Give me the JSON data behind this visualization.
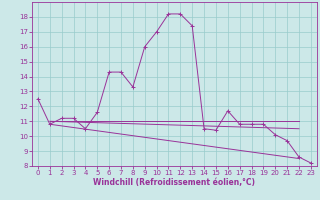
{
  "xlabel": "Windchill (Refroidissement éolien,°C)",
  "bg_color": "#cce8e8",
  "line_color": "#993399",
  "grid_color": "#99cccc",
  "xlim": [
    -0.5,
    23.5
  ],
  "ylim": [
    8,
    19
  ],
  "xticks": [
    0,
    1,
    2,
    3,
    4,
    5,
    6,
    7,
    8,
    9,
    10,
    11,
    12,
    13,
    14,
    15,
    16,
    17,
    18,
    19,
    20,
    21,
    22,
    23
  ],
  "yticks": [
    8,
    9,
    10,
    11,
    12,
    13,
    14,
    15,
    16,
    17,
    18
  ],
  "series0": {
    "x": [
      0,
      1,
      2,
      3,
      4,
      5,
      6,
      7,
      8,
      9,
      10,
      11,
      12,
      13,
      14,
      15,
      16,
      17,
      18,
      19,
      20,
      21,
      22,
      23
    ],
    "y": [
      12.5,
      10.8,
      11.2,
      11.2,
      10.5,
      11.6,
      14.3,
      14.3,
      13.3,
      16.0,
      17.0,
      18.2,
      18.2,
      17.4,
      10.5,
      10.4,
      11.7,
      10.8,
      10.8,
      10.8,
      10.1,
      9.7,
      8.6,
      8.2
    ]
  },
  "series1": {
    "x": [
      1,
      22
    ],
    "y": [
      11.0,
      11.0
    ]
  },
  "series2": {
    "x": [
      1,
      22
    ],
    "y": [
      11.0,
      10.5
    ]
  },
  "series3": {
    "x": [
      1,
      22
    ],
    "y": [
      10.8,
      8.5
    ]
  }
}
